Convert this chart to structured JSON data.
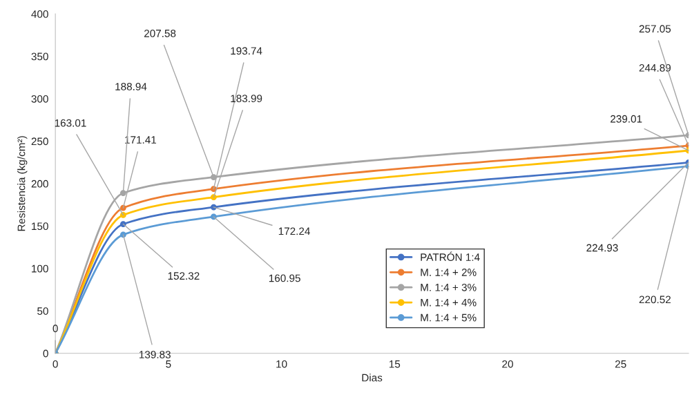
{
  "chart_data": {
    "type": "line",
    "xlabel": "Dias",
    "ylabel": "Resistencia (kg/cm²)",
    "x": [
      0,
      3,
      7,
      28
    ],
    "series": [
      {
        "name": "PATRÓN 1:4",
        "color": "#4472c4",
        "values": [
          0,
          152.32,
          172.24,
          224.93
        ]
      },
      {
        "name": "M. 1:4 + 2%",
        "color": "#ed7d31",
        "values": [
          0,
          171.41,
          193.74,
          244.89
        ]
      },
      {
        "name": "M. 1:4 + 3%",
        "color": "#a5a5a5",
        "values": [
          0,
          188.94,
          207.58,
          257.05
        ]
      },
      {
        "name": "M. 1:4 + 4%",
        "color": "#ffc000",
        "values": [
          0,
          163.01,
          183.99,
          239.01
        ]
      },
      {
        "name": "M. 1:4 + 5%",
        "color": "#5b9bd5",
        "values": [
          0,
          139.83,
          160.95,
          220.52
        ]
      }
    ],
    "annotations": [
      {
        "text": "0",
        "x": 0,
        "y": 0
      },
      {
        "text": "152.32",
        "x": 3,
        "y": 152.32
      },
      {
        "text": "172.24",
        "x": 7,
        "y": 172.24
      },
      {
        "text": "224.93",
        "x": 28,
        "y": 224.93
      },
      {
        "text": "171.41",
        "x": 3,
        "y": 171.41
      },
      {
        "text": "193.74",
        "x": 7,
        "y": 193.74
      },
      {
        "text": "244.89",
        "x": 28,
        "y": 244.89
      },
      {
        "text": "188.94",
        "x": 3,
        "y": 188.94
      },
      {
        "text": "207.58",
        "x": 7,
        "y": 207.58
      },
      {
        "text": "257.05",
        "x": 28,
        "y": 257.05
      },
      {
        "text": "163.01",
        "x": 3,
        "y": 163.01
      },
      {
        "text": "183.99",
        "x": 7,
        "y": 183.99
      },
      {
        "text": "239.01",
        "x": 28,
        "y": 239.01
      },
      {
        "text": "139.83",
        "x": 3,
        "y": 139.83
      },
      {
        "text": "160.95",
        "x": 7,
        "y": 160.95
      },
      {
        "text": "220.52",
        "x": 28,
        "y": 220.52
      }
    ],
    "xlim": [
      0,
      28
    ],
    "xticks": [
      0,
      5,
      10,
      15,
      20,
      25
    ],
    "ylim": [
      0,
      400
    ],
    "yticks": [
      0,
      50,
      100,
      150,
      200,
      250,
      300,
      350,
      400
    ],
    "grid": false,
    "legend": "bottom",
    "marker": "circle",
    "line_style": "solid"
  }
}
